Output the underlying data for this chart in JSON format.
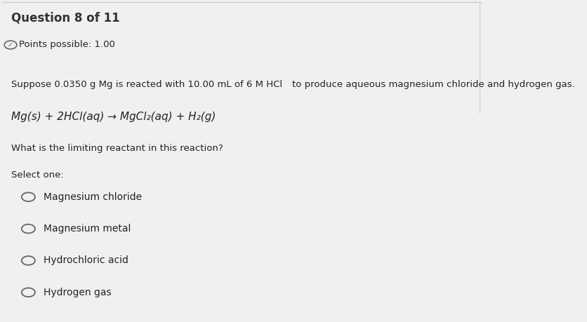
{
  "background_color": "#f0f0f0",
  "header_text": "Question 8 of 11",
  "points_text": "Points possible: 1.00",
  "intro_part1": "Suppose 0.0350 g Mg is reacted with 10.00 mL of 6 M HCl",
  "intro_part2": "to produce aqueous magnesium chloride and hydrogen gas.",
  "equation": "Mg(s) + 2HCl(aq) → MgCl₂(aq) + H₂(g)",
  "question": "What is the limiting reactant in this reaction?",
  "select_label": "Select one:",
  "options": [
    "Magnesium chloride",
    "Magnesium metal",
    "Hydrochloric acid",
    "Hydrogen gas"
  ],
  "text_color": "#222222",
  "header_color": "#333333",
  "circle_edge_color": "#666666"
}
